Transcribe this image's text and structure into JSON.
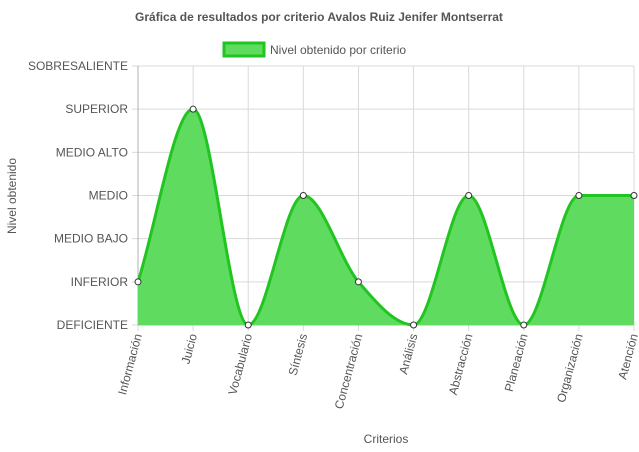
{
  "chart_data": {
    "type": "area",
    "title": "Gráfica de resultados por criterio Avalos Ruiz Jenifer Montserrat",
    "xlabel": "Criterios",
    "ylabel": "Nivel obtenido",
    "categories": [
      "Información",
      "Juicio",
      "Vocabulario",
      "Síntesis",
      "Concentración",
      "Análisis",
      "Abstracción",
      "Planeación",
      "Organización",
      "Atención"
    ],
    "y_levels": [
      "DEFICIENTE",
      "INFERIOR",
      "MEDIO BAJO",
      "MEDIO",
      "MEDIO ALTO",
      "SUPERIOR",
      "SOBRESALIENTE"
    ],
    "ylim": [
      0,
      6
    ],
    "legend_position": "top-center",
    "grid": true,
    "series": [
      {
        "name": "Nivel obtenido por criterio",
        "values": [
          1,
          5,
          0,
          3,
          1,
          0,
          3,
          0,
          3,
          3
        ],
        "fill_color": "#5fdc5f",
        "line_color": "#22c422"
      }
    ]
  }
}
